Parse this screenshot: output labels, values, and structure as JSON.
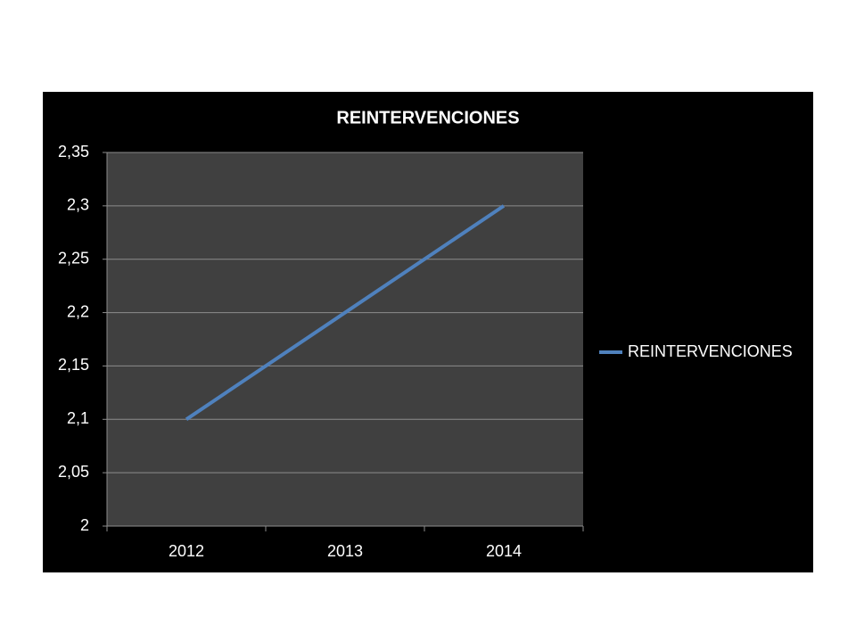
{
  "chart_data": {
    "type": "line",
    "title": "REINTERVENCIONES",
    "categories": [
      "2012",
      "2013",
      "2014"
    ],
    "series": [
      {
        "name": "REINTERVENCIONES",
        "color": "#4f81bd",
        "values": [
          2.1,
          2.2,
          2.3
        ]
      }
    ],
    "ylim": [
      2,
      2.35
    ],
    "yticks": [
      2,
      {
        "value": 2.05,
        "label": "2,05"
      },
      {
        "value": 2.1,
        "label": "2,1"
      },
      {
        "value": 2.15,
        "label": "2,15"
      },
      {
        "value": 2.2,
        "label": "2,2"
      },
      {
        "value": 2.25,
        "label": "2,25"
      },
      {
        "value": 2.3,
        "label": "2,3"
      },
      {
        "value": 2.35,
        "label": "2,35"
      }
    ],
    "grid": true,
    "legend": "right"
  }
}
